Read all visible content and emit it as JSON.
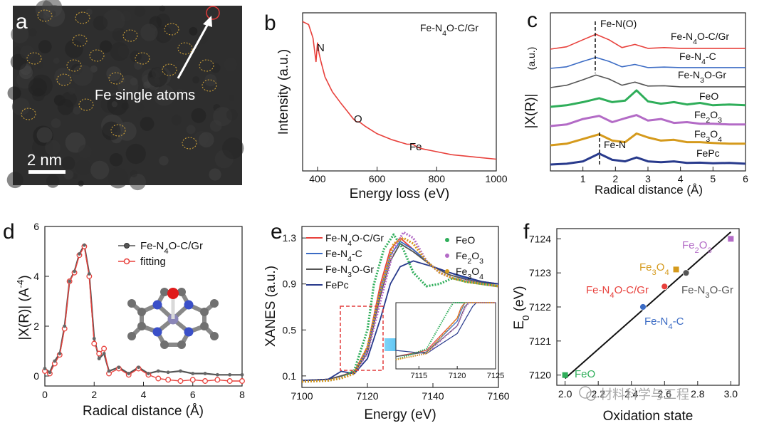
{
  "panels": {
    "a": {
      "label": "a",
      "annotation": "Fe single atoms",
      "scalebar": "2 nm"
    },
    "b": {
      "label": "b",
      "chart_title": "Fe-N4O-C/Gr",
      "x_label": "Energy loss (eV)",
      "y_label": "Intensity (a.u.)",
      "peaks": [
        "N",
        "O",
        "Fe"
      ]
    },
    "c": {
      "label": "c",
      "x_label": "Radical distance (Å)",
      "y_label": "|X(R)|",
      "y_unit": "(a.u.)",
      "annotations": [
        "Fe-N(O)",
        "Fe-N"
      ],
      "curves": [
        "Fe-N4O-C/Gr",
        "Fe-N4-C",
        "Fe-N3O-Gr",
        "FeO",
        "Fe2O3",
        "Fe3O4",
        "FePc"
      ]
    },
    "d": {
      "label": "d",
      "x_label": "Radical distance (Å)",
      "y_label": "|X(R)| (A-4)",
      "legend": [
        "Fe-N4O-C/Gr",
        "fitting"
      ]
    },
    "e": {
      "label": "e",
      "x_label": "Energy (eV)",
      "y_label": "XANES (a.u.)",
      "legend_lines": [
        "Fe-N4O-C/Gr",
        "Fe-N4-C",
        "Fe-N3O-Gr",
        "FePc"
      ],
      "legend_dots": [
        "FeO",
        "Fe2O3",
        "Fe3O4"
      ]
    },
    "f": {
      "label": "f",
      "x_label": "Oxidation state",
      "y_label": "E0 (eV)",
      "watermark": "材料科学与工程"
    }
  },
  "colors": {
    "red": "#e8413c",
    "blue": "#3b6bc4",
    "gray": "#555555",
    "green": "#2fae5a",
    "purple": "#b36bc6",
    "gold": "#d59a1c",
    "navy": "#283a8c"
  },
  "chart_data": [
    {
      "type": "line",
      "panel": "b",
      "title": "Fe-N4O-C/Gr",
      "xlabel": "Energy loss (eV)",
      "ylabel": "Intensity (a.u.)",
      "xlim": [
        350,
        1000
      ],
      "xticks": [
        400,
        600,
        800,
        1000
      ],
      "x": [
        350,
        370,
        385,
        395,
        400,
        405,
        412,
        425,
        450,
        480,
        500,
        520,
        530,
        540,
        560,
        600,
        650,
        700,
        720,
        735,
        750,
        800,
        850,
        900,
        950,
        1000
      ],
      "y": [
        0.97,
        0.95,
        0.86,
        0.7,
        0.83,
        0.76,
        0.7,
        0.6,
        0.5,
        0.42,
        0.37,
        0.32,
        0.3,
        0.3,
        0.27,
        0.22,
        0.18,
        0.15,
        0.15,
        0.13,
        0.12,
        0.1,
        0.08,
        0.07,
        0.06,
        0.05
      ],
      "peak_labels": [
        {
          "text": "N",
          "x": 400
        },
        {
          "text": "O",
          "x": 532
        },
        {
          "text": "Fe",
          "x": 720
        }
      ]
    },
    {
      "type": "line",
      "panel": "c",
      "xlabel": "Radical distance (Å)",
      "ylabel": "|X(R)|",
      "xlim": [
        0,
        6
      ],
      "xticks": [
        1,
        2,
        3,
        4,
        5,
        6
      ],
      "series": [
        {
          "name": "Fe-N4O-C/Gr",
          "offset": 6,
          "x": [
            0,
            0.5,
            1.0,
            1.4,
            1.8,
            2.2,
            2.6,
            3.0,
            3.5,
            4.0,
            4.5,
            5.0,
            6.0
          ],
          "y": [
            0.0,
            0.15,
            0.6,
            0.95,
            0.6,
            0.1,
            0.3,
            0.05,
            0.1,
            0.05,
            0.05,
            0.05,
            0.05
          ]
        },
        {
          "name": "Fe-N4-C",
          "offset": 5,
          "x": [
            0,
            0.5,
            1.0,
            1.4,
            1.8,
            2.2,
            2.6,
            3.0,
            3.5,
            4.0,
            4.5,
            5.0,
            6.0
          ],
          "y": [
            0.0,
            0.1,
            0.45,
            0.7,
            0.45,
            0.1,
            0.25,
            0.05,
            0.08,
            0.05,
            0.05,
            0.05,
            0.05
          ]
        },
        {
          "name": "Fe-N3O-Gr",
          "offset": 4,
          "x": [
            0,
            0.5,
            1.0,
            1.4,
            1.8,
            2.2,
            2.6,
            3.0,
            3.5,
            4.0,
            4.5,
            5.0,
            6.0
          ],
          "y": [
            0.0,
            0.15,
            0.5,
            0.8,
            0.55,
            0.15,
            0.35,
            0.1,
            0.12,
            0.05,
            0.05,
            0.05,
            0.05
          ]
        },
        {
          "name": "FeO",
          "offset": 3,
          "x": [
            0,
            0.5,
            1.0,
            1.5,
            1.9,
            2.3,
            2.65,
            3.0,
            3.4,
            3.8,
            4.2,
            4.6,
            5.0,
            5.5,
            6.0
          ],
          "y": [
            0.0,
            0.1,
            0.3,
            0.55,
            0.3,
            0.4,
            1.05,
            0.35,
            0.2,
            0.3,
            0.15,
            0.25,
            0.1,
            0.15,
            0.1
          ]
        },
        {
          "name": "Fe2O3",
          "offset": 2,
          "x": [
            0,
            0.5,
            1.0,
            1.5,
            1.9,
            2.3,
            2.65,
            3.0,
            3.4,
            3.8,
            4.2,
            4.6,
            5.0,
            5.5,
            6.0
          ],
          "y": [
            0.0,
            0.1,
            0.45,
            0.65,
            0.25,
            0.5,
            0.7,
            0.35,
            0.45,
            0.2,
            0.25,
            0.15,
            0.15,
            0.1,
            0.1
          ]
        },
        {
          "name": "Fe3O4",
          "offset": 1,
          "x": [
            0,
            0.5,
            1.0,
            1.5,
            1.9,
            2.3,
            2.65,
            3.0,
            3.4,
            3.8,
            4.2,
            4.6,
            5.0,
            5.5,
            6.0
          ],
          "y": [
            0.0,
            0.1,
            0.4,
            0.7,
            0.3,
            0.2,
            0.75,
            0.5,
            0.3,
            0.35,
            0.2,
            0.2,
            0.15,
            0.1,
            0.1
          ]
        },
        {
          "name": "FePc",
          "offset": 0,
          "x": [
            0,
            0.5,
            1.0,
            1.5,
            1.9,
            2.3,
            2.65,
            3.0,
            3.4,
            3.8,
            4.2,
            4.6,
            5.0,
            5.5,
            6.0
          ],
          "y": [
            0.0,
            0.05,
            0.2,
            0.7,
            0.3,
            0.2,
            0.45,
            0.2,
            0.15,
            0.2,
            0.1,
            0.12,
            0.08,
            0.1,
            0.05
          ]
        }
      ],
      "dashed_markers": [
        {
          "text": "Fe-N(O)",
          "x": 1.45
        },
        {
          "text": "Fe-N",
          "x": 1.5
        }
      ]
    },
    {
      "type": "line",
      "panel": "d",
      "xlabel": "Radical distance (Å)",
      "ylabel": "|X(R)| (A-4)",
      "xlim": [
        0,
        8
      ],
      "ylim": [
        -0.4,
        6
      ],
      "xticks": [
        0,
        2,
        4,
        6,
        8
      ],
      "yticks": [
        0,
        2,
        4,
        6
      ],
      "series": [
        {
          "name": "Fe-N4O-C/Gr",
          "x": [
            0,
            0.2,
            0.4,
            0.6,
            0.8,
            1.0,
            1.2,
            1.4,
            1.6,
            1.8,
            2.0,
            2.2,
            2.4,
            2.6,
            3.0,
            3.4,
            3.8,
            4.2,
            4.6,
            5.0,
            5.5,
            6.0,
            6.5,
            7.0,
            7.5,
            8.0
          ],
          "y": [
            0.3,
            0.15,
            0.6,
            0.9,
            2.0,
            3.8,
            4.2,
            4.9,
            5.25,
            4.1,
            1.5,
            0.7,
            0.9,
            0.2,
            0.35,
            0.1,
            0.35,
            0.1,
            0.2,
            0.15,
            0.2,
            0.1,
            0.1,
            0.05,
            0.05,
            0.05
          ]
        },
        {
          "name": "fitting",
          "x": [
            0,
            0.2,
            0.4,
            0.6,
            0.8,
            1.0,
            1.2,
            1.4,
            1.6,
            1.8,
            2.0,
            2.2,
            2.4,
            2.6,
            3.0,
            3.4,
            3.8,
            4.2,
            4.6,
            5.0,
            5.5,
            6.0,
            6.5,
            7.0,
            7.5,
            8.0
          ],
          "y": [
            0.2,
            0.1,
            0.5,
            0.85,
            1.9,
            3.8,
            4.15,
            4.85,
            5.2,
            4.0,
            1.3,
            0.9,
            1.1,
            0.1,
            0.3,
            0.05,
            0.3,
            0.05,
            -0.1,
            -0.15,
            -0.2,
            -0.15,
            -0.2,
            -0.15,
            -0.2,
            -0.2
          ]
        }
      ]
    },
    {
      "type": "line",
      "panel": "e",
      "xlabel": "Energy (eV)",
      "ylabel": "XANES (a.u.)",
      "xlim": [
        7100,
        7160
      ],
      "ylim": [
        0,
        1.4
      ],
      "xticks": [
        7100,
        7120,
        7140,
        7160
      ],
      "yticks": [
        0.1,
        0.5,
        0.9,
        1.3
      ],
      "series": [
        {
          "name": "Fe-N4O-C/Gr",
          "x": [
            7100,
            7108,
            7112,
            7116,
            7120,
            7124,
            7127,
            7130,
            7134,
            7140,
            7145,
            7150,
            7155,
            7160
          ],
          "y": [
            0.06,
            0.07,
            0.1,
            0.14,
            0.35,
            0.9,
            1.2,
            1.3,
            1.2,
            1.05,
            1.0,
            0.95,
            0.92,
            0.9
          ]
        },
        {
          "name": "Fe-N4-C",
          "x": [
            7100,
            7108,
            7112,
            7116,
            7120,
            7124,
            7127,
            7130,
            7134,
            7140,
            7145,
            7150,
            7155,
            7160
          ],
          "y": [
            0.06,
            0.07,
            0.1,
            0.13,
            0.33,
            0.85,
            1.15,
            1.27,
            1.2,
            1.05,
            1.0,
            0.95,
            0.92,
            0.9
          ]
        },
        {
          "name": "Fe-N3O-Gr",
          "x": [
            7100,
            7108,
            7112,
            7116,
            7120,
            7124,
            7127,
            7130,
            7134,
            7140,
            7145,
            7150,
            7155,
            7160
          ],
          "y": [
            0.06,
            0.07,
            0.1,
            0.13,
            0.3,
            0.8,
            1.1,
            1.25,
            1.18,
            1.05,
            0.98,
            0.94,
            0.91,
            0.9
          ]
        },
        {
          "name": "FePc",
          "x": [
            7100,
            7108,
            7112,
            7116,
            7120,
            7124,
            7127,
            7130,
            7134,
            7140,
            7145,
            7150,
            7155,
            7160
          ],
          "y": [
            0.06,
            0.07,
            0.14,
            0.12,
            0.25,
            0.6,
            0.9,
            1.05,
            1.1,
            1.05,
            1.0,
            0.96,
            0.92,
            0.9
          ]
        },
        {
          "name": "FeO",
          "x": [
            7100,
            7108,
            7112,
            7116,
            7120,
            7122,
            7125,
            7128,
            7131,
            7134,
            7138,
            7142,
            7146,
            7150,
            7155,
            7160
          ],
          "y": [
            0.05,
            0.06,
            0.08,
            0.15,
            0.5,
            0.9,
            1.2,
            1.33,
            1.2,
            1.0,
            0.88,
            0.9,
            0.95,
            0.92,
            0.9,
            0.88
          ]
        },
        {
          "name": "Fe2O3",
          "x": [
            7100,
            7108,
            7112,
            7116,
            7120,
            7124,
            7128,
            7131,
            7134,
            7138,
            7142,
            7146,
            7150,
            7155,
            7160
          ],
          "y": [
            0.05,
            0.06,
            0.08,
            0.12,
            0.3,
            0.75,
            1.2,
            1.35,
            1.3,
            1.1,
            1.0,
            0.95,
            0.93,
            0.9,
            0.88
          ]
        },
        {
          "name": "Fe3O4",
          "x": [
            7100,
            7108,
            7112,
            7116,
            7120,
            7124,
            7128,
            7131,
            7134,
            7138,
            7142,
            7146,
            7150,
            7155,
            7160
          ],
          "y": [
            0.05,
            0.06,
            0.08,
            0.12,
            0.35,
            0.85,
            1.25,
            1.3,
            1.25,
            1.1,
            1.0,
            0.95,
            0.92,
            0.9,
            0.88
          ]
        }
      ],
      "inset": {
        "xlim": [
          7112,
          7125
        ],
        "xticks": [
          7115,
          7120,
          7125
        ]
      }
    },
    {
      "type": "scatter",
      "panel": "f",
      "xlabel": "Oxidation state",
      "ylabel": "E0 (eV)",
      "xlim": [
        1.95,
        3.05
      ],
      "ylim": [
        7119.7,
        7124.3
      ],
      "xticks": [
        2.0,
        2.2,
        2.4,
        2.6,
        2.8,
        3.0
      ],
      "xtick_labels": [
        "2.0",
        "2.2",
        "2.4",
        "2.6",
        "2.8",
        "3.0"
      ],
      "yticks": [
        7120,
        7121,
        7122,
        7123,
        7124
      ],
      "points": [
        {
          "name": "FeO",
          "x": 2.0,
          "y": 7120.0,
          "shape": "square"
        },
        {
          "name": "Fe-N4-C",
          "x": 2.47,
          "y": 7122.0,
          "shape": "circle"
        },
        {
          "name": "Fe-N4O-C/Gr",
          "x": 2.6,
          "y": 7122.6,
          "shape": "circle"
        },
        {
          "name": "Fe-N3O-Gr",
          "x": 2.73,
          "y": 7123.0,
          "shape": "circle"
        },
        {
          "name": "Fe3O4",
          "x": 2.67,
          "y": 7123.1,
          "shape": "square"
        },
        {
          "name": "Fe2O3",
          "x": 3.0,
          "y": 7124.0,
          "shape": "square"
        }
      ],
      "fit_line": {
        "x": [
          2.0,
          3.0
        ],
        "y": [
          7119.9,
          7124.2
        ]
      }
    }
  ]
}
